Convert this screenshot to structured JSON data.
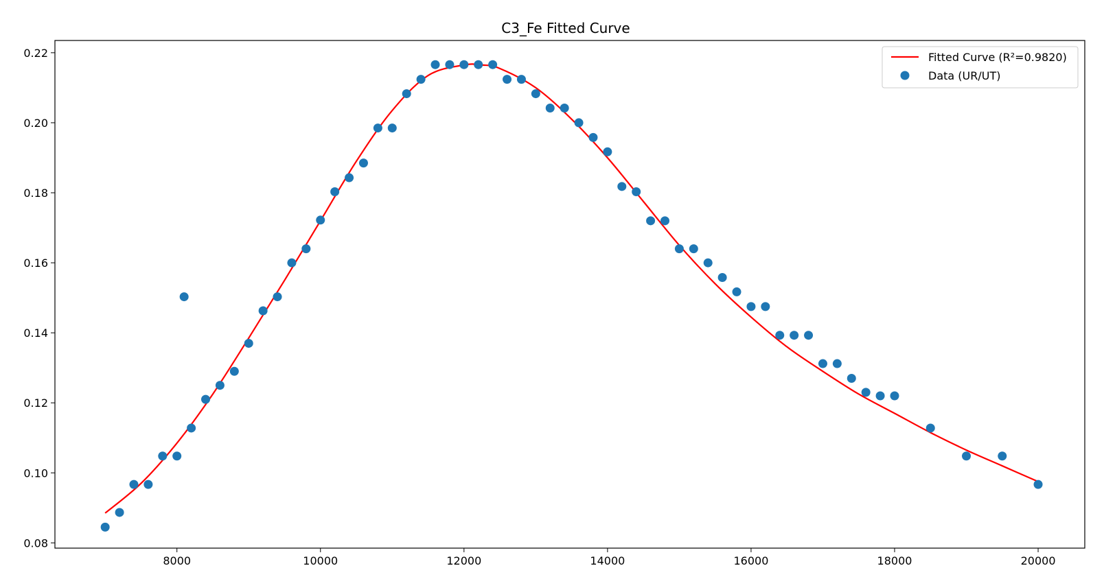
{
  "chart_data": {
    "type": "scatter",
    "title": "C3_Fe Fitted Curve",
    "xlabel": "",
    "ylabel": "",
    "xlim": [
      6300,
      20650
    ],
    "ylim": [
      0.0785,
      0.2235
    ],
    "xticks": [
      8000,
      10000,
      12000,
      14000,
      16000,
      18000,
      20000
    ],
    "yticks": [
      0.08,
      0.1,
      0.12,
      0.14,
      0.16,
      0.18,
      0.2,
      0.22
    ],
    "xtick_labels": [
      "8000",
      "10000",
      "12000",
      "14000",
      "16000",
      "18000",
      "20000"
    ],
    "ytick_labels": [
      "0.08",
      "0.10",
      "0.12",
      "0.14",
      "0.16",
      "0.18",
      "0.20",
      "0.22"
    ],
    "grid": false,
    "legend_position": "top-right",
    "series": [
      {
        "name": "Fitted Curve (R²=0.9820)",
        "kind": "line",
        "color": "#ff0000",
        "x": [
          7000,
          7500,
          8000,
          8500,
          9000,
          9500,
          10000,
          10500,
          11000,
          11500,
          12000,
          12250,
          12500,
          13000,
          13500,
          14000,
          14500,
          15000,
          15500,
          16000,
          16500,
          17000,
          17500,
          18000,
          18500,
          19000,
          19500,
          20000
        ],
        "y": [
          0.0885,
          0.097,
          0.1085,
          0.1225,
          0.1385,
          0.155,
          0.172,
          0.189,
          0.2035,
          0.2135,
          0.2165,
          0.2165,
          0.2155,
          0.21,
          0.201,
          0.19,
          0.1775,
          0.165,
          0.154,
          0.1445,
          0.136,
          0.129,
          0.1225,
          0.117,
          0.1115,
          0.1065,
          0.102,
          0.0975
        ]
      },
      {
        "name": "Data (UR/UT)",
        "kind": "scatter",
        "color": "#1f77b4",
        "x": [
          7000,
          7200,
          7400,
          7600,
          7800,
          8000,
          8100,
          8200,
          8400,
          8600,
          8800,
          9000,
          9200,
          9400,
          9600,
          9800,
          10000,
          10200,
          10400,
          10600,
          10800,
          11000,
          11200,
          11400,
          11600,
          11800,
          12000,
          12200,
          12400,
          12600,
          12800,
          13000,
          13200,
          13400,
          13600,
          13800,
          14000,
          14200,
          14400,
          14600,
          14800,
          15000,
          15200,
          15400,
          15600,
          15800,
          16000,
          16200,
          16400,
          16600,
          16800,
          17000,
          17200,
          17400,
          17600,
          17800,
          18000,
          18500,
          19000,
          19500,
          20000
        ],
        "y": [
          0.0845,
          0.0887,
          0.0967,
          0.0967,
          0.1048,
          0.1048,
          0.1503,
          0.1128,
          0.121,
          0.125,
          0.129,
          0.137,
          0.1463,
          0.1503,
          0.16,
          0.164,
          0.1722,
          0.1803,
          0.1843,
          0.1885,
          0.1985,
          0.1985,
          0.2083,
          0.2124,
          0.2166,
          0.2166,
          0.2166,
          0.2166,
          0.2166,
          0.2124,
          0.2124,
          0.2083,
          0.2042,
          0.2042,
          0.2,
          0.1958,
          0.1917,
          0.1818,
          0.1803,
          0.172,
          0.172,
          0.164,
          0.164,
          0.16,
          0.1558,
          0.1517,
          0.1475,
          0.1475,
          0.1393,
          0.1393,
          0.1393,
          0.1312,
          0.1312,
          0.127,
          0.123,
          0.122,
          0.122,
          0.1128,
          0.1048,
          0.1048,
          0.0967
        ]
      }
    ]
  }
}
